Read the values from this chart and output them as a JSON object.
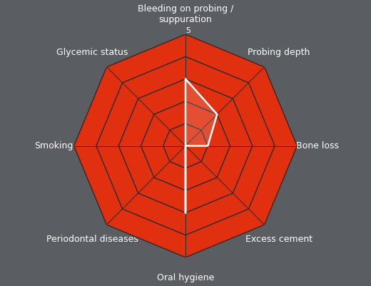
{
  "categories": [
    "Bleeding on probing /\nsuppuration",
    "Probing depth",
    "Bone loss",
    "Excess cement",
    "Oral hygiene",
    "Periodontal diseases",
    "Smoking",
    "Glycemic status"
  ],
  "values": [
    3,
    2,
    1,
    0,
    3,
    0,
    0,
    0
  ],
  "n_axes": 8,
  "max_value": 5,
  "background_color": "#5a5e63",
  "ring_colors": [
    "#e03010",
    "#e89020",
    "#d4c030",
    "#6aaa30",
    "#3a8a20"
  ],
  "ring_levels": [
    5,
    4,
    3,
    2,
    1
  ],
  "data_line_color": "white",
  "label_color": "white",
  "tick_label_color": "white",
  "label_fontsize": 9,
  "tick_fontsize": 8
}
